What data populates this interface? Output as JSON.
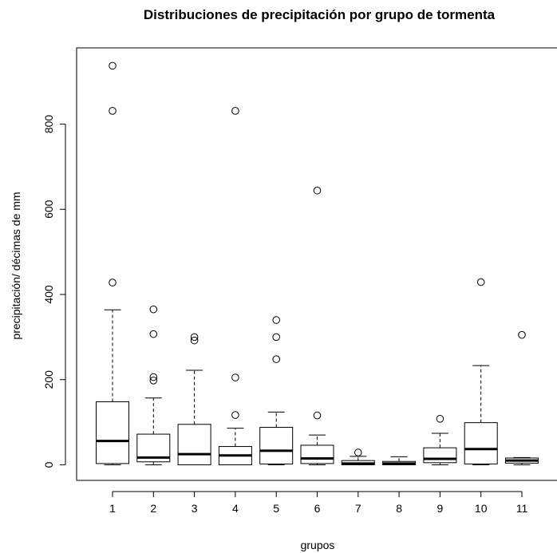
{
  "chart_data": {
    "type": "boxplot",
    "title": "Distribuciones de precipitación por grupo de tormenta",
    "xlabel": "grupos",
    "ylabel": "precipitación/ décimas de mm",
    "ylim": [
      -38,
      960
    ],
    "yticks": [
      0,
      200,
      400,
      600,
      800
    ],
    "categories": [
      "1",
      "2",
      "3",
      "4",
      "5",
      "6",
      "7",
      "8",
      "9",
      "10",
      "11"
    ],
    "grid": false,
    "boxes": [
      {
        "min": 0,
        "q1": 3,
        "median": 56,
        "q3": 148,
        "max": 364,
        "outliers": [
          428,
          831,
          937
        ]
      },
      {
        "min": 0,
        "q1": 7,
        "median": 17,
        "q3": 72,
        "max": 157,
        "outliers": [
          198,
          206,
          307,
          365
        ]
      },
      {
        "min": 0,
        "q1": 0,
        "median": 25,
        "q3": 95,
        "max": 222,
        "outliers": [
          292,
          300
        ]
      },
      {
        "min": 0,
        "q1": 0,
        "median": 22,
        "q3": 43,
        "max": 86,
        "outliers": [
          117,
          205,
          831
        ]
      },
      {
        "min": 0,
        "q1": 2,
        "median": 33,
        "q3": 88,
        "max": 124,
        "outliers": [
          248,
          300,
          340
        ]
      },
      {
        "min": 0,
        "q1": 3,
        "median": 15,
        "q3": 46,
        "max": 70,
        "outliers": [
          116,
          644
        ]
      },
      {
        "min": 0,
        "q1": 0,
        "median": 3,
        "q3": 10,
        "max": 20,
        "outliers": [
          29
        ]
      },
      {
        "min": 0,
        "q1": 0,
        "median": 3,
        "q3": 8,
        "max": 19,
        "outliers": []
      },
      {
        "min": 0,
        "q1": 5,
        "median": 14,
        "q3": 40,
        "max": 74,
        "outliers": [
          108
        ]
      },
      {
        "min": 0,
        "q1": 2,
        "median": 37,
        "q3": 99,
        "max": 233,
        "outliers": [
          429
        ]
      },
      {
        "min": 0,
        "q1": 4,
        "median": 10,
        "q3": 16,
        "max": 17,
        "outliers": [
          305
        ]
      }
    ]
  }
}
